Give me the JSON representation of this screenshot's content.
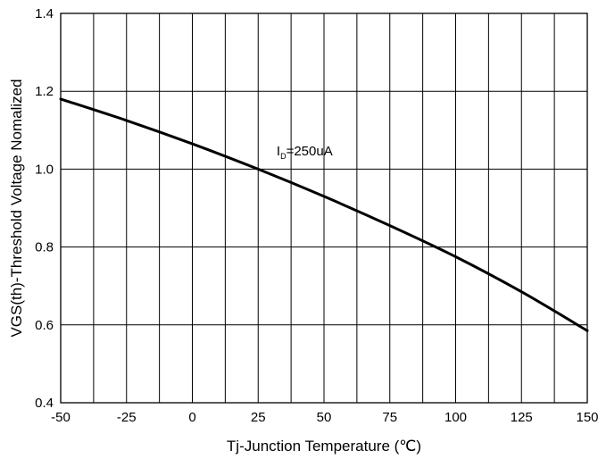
{
  "chart_data": {
    "type": "line",
    "xlabel": "Tj-Junction Temperature (℃)",
    "ylabel": "VGS(th)-Threshold Voltage Nomalized",
    "xlim": [
      -50,
      150
    ],
    "ylim": [
      0.4,
      1.4
    ],
    "x_ticks": [
      -50,
      -25,
      0,
      25,
      50,
      75,
      100,
      125,
      150
    ],
    "x_tick_labels": [
      "-50",
      "-25",
      "0",
      "25",
      "50",
      "75",
      "100",
      "125",
      "150"
    ],
    "y_ticks": [
      0.4,
      0.6,
      0.8,
      1.0,
      1.2,
      1.4
    ],
    "y_tick_labels": [
      "0.4",
      "0.6",
      "0.8",
      "1.0",
      "1.2",
      "1.4"
    ],
    "x_minor_step": 12.5,
    "grid": true,
    "line_color": "#000000",
    "series": [
      {
        "x": [
          -50,
          -25,
          0,
          25,
          50,
          75,
          100,
          125,
          150
        ],
        "values": [
          1.18,
          1.125,
          1.065,
          1.0,
          0.93,
          0.855,
          0.775,
          0.685,
          0.585
        ]
      }
    ],
    "annotations": [
      {
        "main": "I",
        "sub": "D",
        "rest": "=250uA",
        "x": 32,
        "y": 1.035
      }
    ]
  }
}
